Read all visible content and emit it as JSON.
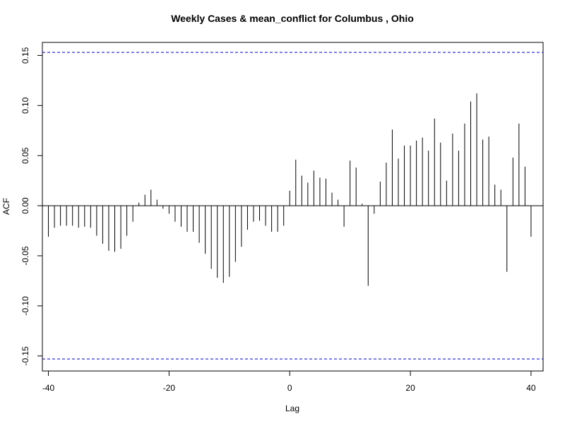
{
  "chart_data": {
    "type": "bar",
    "title": "Weekly Cases & mean_conflict for Columbus , Ohio",
    "xlabel": "Lag",
    "ylabel": "ACF",
    "xlim": [
      -41,
      42
    ],
    "ylim": [
      -0.165,
      0.163
    ],
    "x_ticks": [
      -40,
      -20,
      0,
      20,
      40
    ],
    "x_tick_labels": [
      "-40",
      "-20",
      "0",
      "20",
      "40"
    ],
    "y_ticks": [
      -0.15,
      -0.1,
      -0.05,
      0.0,
      0.05,
      0.1,
      0.15
    ],
    "y_tick_labels": [
      "-0.15",
      "-0.10",
      "-0.05",
      "0.00",
      "0.05",
      "0.10",
      "0.15"
    ],
    "confidence_bound": 0.153,
    "confidence_color": "#0000cc",
    "bar_color": "#000000",
    "grid": false,
    "x": [
      -40,
      -39,
      -38,
      -37,
      -36,
      -35,
      -34,
      -33,
      -32,
      -31,
      -30,
      -29,
      -28,
      -27,
      -26,
      -25,
      -24,
      -23,
      -22,
      -21,
      -20,
      -19,
      -18,
      -17,
      -16,
      -15,
      -14,
      -13,
      -12,
      -11,
      -10,
      -9,
      -8,
      -7,
      -6,
      -5,
      -4,
      -3,
      -2,
      -1,
      0,
      1,
      2,
      3,
      4,
      5,
      6,
      7,
      8,
      9,
      10,
      11,
      12,
      13,
      14,
      15,
      16,
      17,
      18,
      19,
      20,
      21,
      22,
      23,
      24,
      25,
      26,
      27,
      28,
      29,
      30,
      31,
      32,
      33,
      34,
      35,
      36,
      37,
      38,
      39,
      40
    ],
    "values": [
      -0.031,
      -0.022,
      -0.02,
      -0.02,
      -0.02,
      -0.022,
      -0.021,
      -0.022,
      -0.03,
      -0.038,
      -0.045,
      -0.046,
      -0.043,
      -0.03,
      -0.016,
      0.003,
      0.011,
      0.016,
      0.006,
      -0.003,
      -0.008,
      -0.016,
      -0.021,
      -0.026,
      -0.026,
      -0.037,
      -0.048,
      -0.063,
      -0.072,
      -0.077,
      -0.071,
      -0.056,
      -0.041,
      -0.024,
      -0.016,
      -0.015,
      -0.02,
      -0.026,
      -0.026,
      -0.02,
      0.015,
      0.046,
      0.03,
      0.023,
      0.035,
      0.028,
      0.027,
      0.013,
      0.006,
      -0.021,
      0.045,
      0.038,
      0.002,
      -0.08,
      -0.008,
      0.024,
      0.043,
      0.076,
      0.047,
      0.06,
      0.06,
      0.065,
      0.068,
      0.055,
      0.087,
      0.063,
      0.025,
      0.072,
      0.055,
      0.082,
      0.104,
      0.112,
      0.066,
      0.069,
      0.021,
      0.016,
      -0.066,
      0.048,
      0.082,
      0.039,
      -0.031
    ]
  }
}
